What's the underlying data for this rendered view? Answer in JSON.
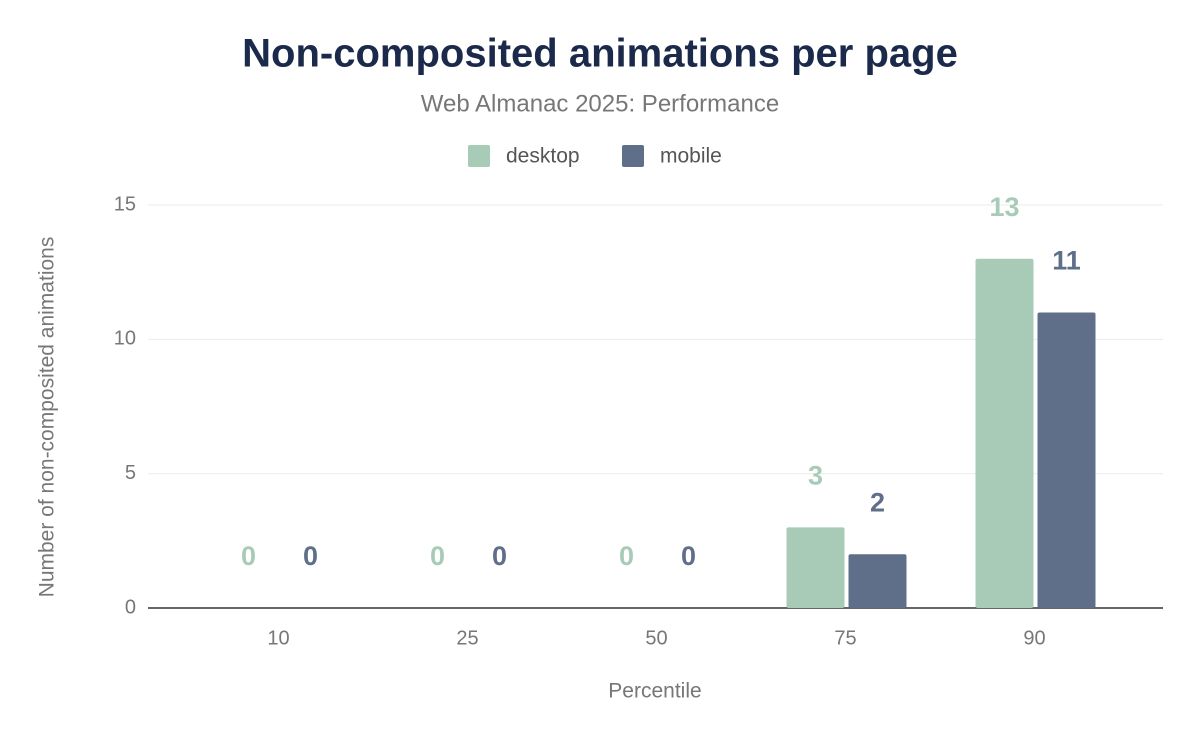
{
  "chart_data": {
    "type": "bar",
    "title": "Non-composited animations per page",
    "subtitle": "Web Almanac 2025: Performance",
    "x_label": "Percentile",
    "y_label": "Number of non-composited animations",
    "categories": [
      "10",
      "25",
      "50",
      "75",
      "90"
    ],
    "series": [
      {
        "name": "desktop",
        "color": "#a8cbb7",
        "values": [
          0,
          0,
          0,
          3,
          13
        ]
      },
      {
        "name": "mobile",
        "color": "#5f6f89",
        "values": [
          0,
          0,
          0,
          2,
          11
        ]
      }
    ],
    "ylim": [
      0,
      15
    ],
    "yticks": [
      0,
      5,
      10,
      15
    ],
    "grid": true,
    "legend": "top"
  }
}
